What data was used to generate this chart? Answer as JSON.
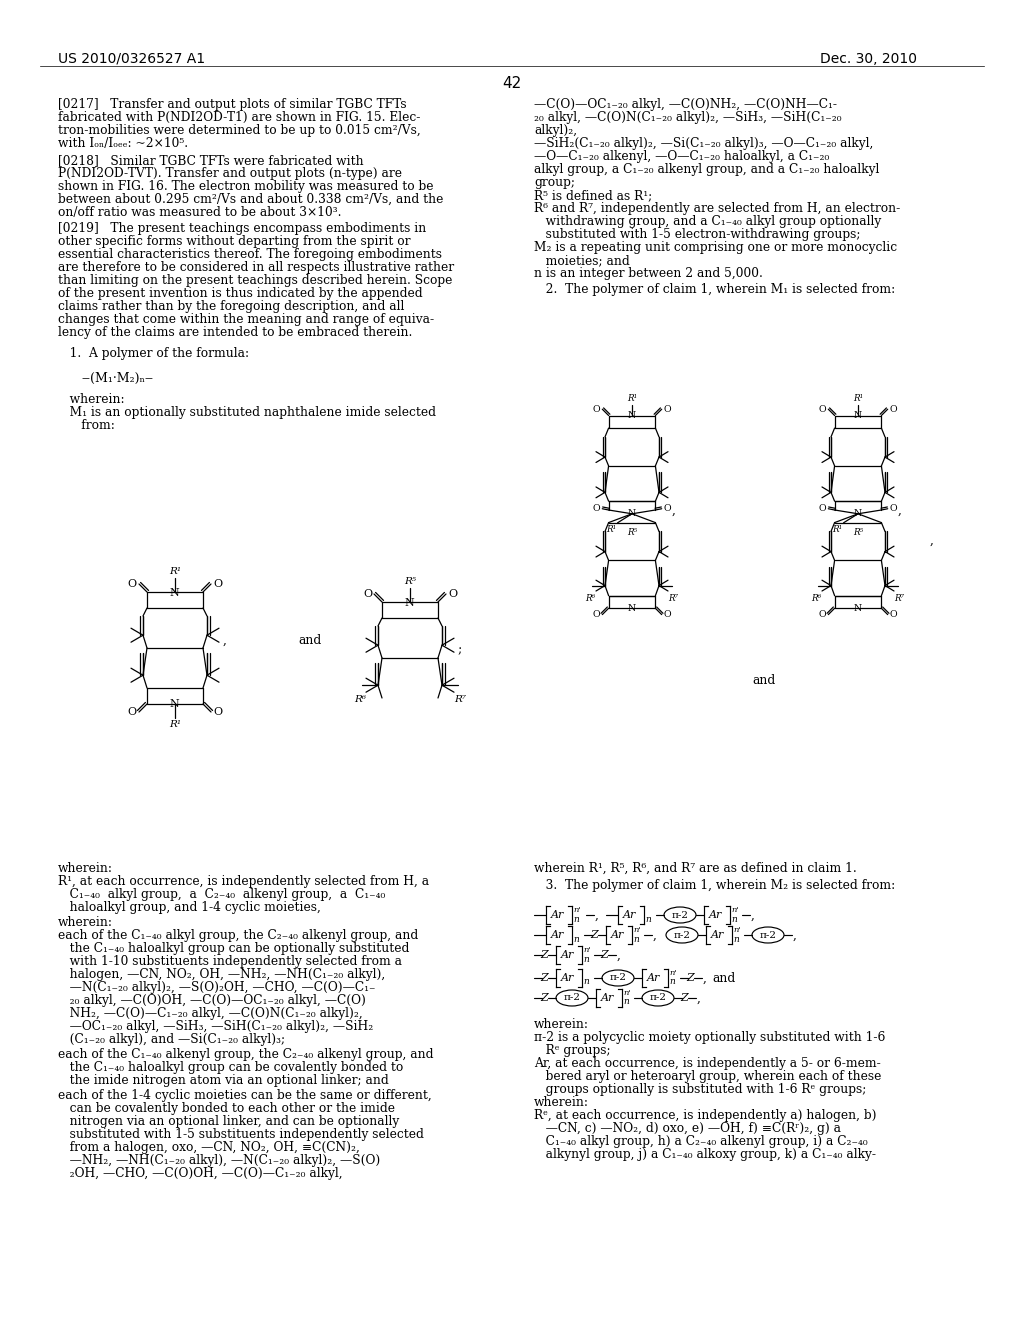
{
  "bg": "#ffffff",
  "header_left": "US 2010/0326527 A1",
  "header_right": "Dec. 30, 2010",
  "page_num": "42"
}
